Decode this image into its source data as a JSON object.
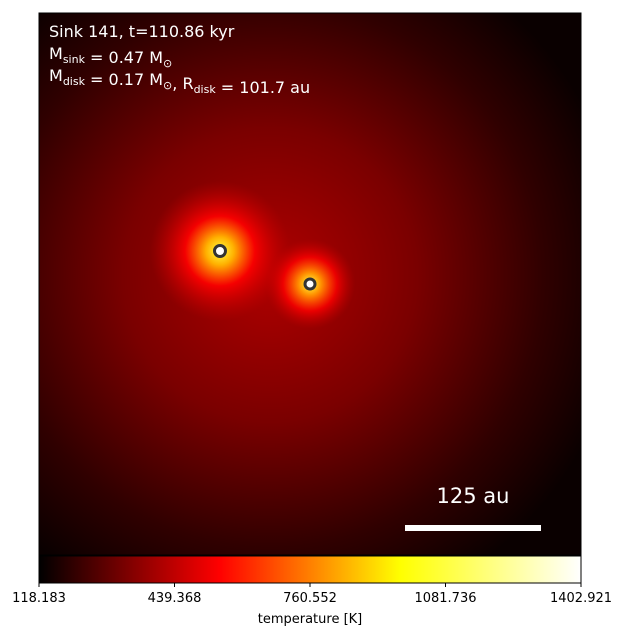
{
  "chart_data": {
    "type": "heatmap",
    "annotation_lines": [
      [
        {
          "text": "Sink 141, t=110.86 kyr"
        }
      ],
      [
        {
          "text": "M",
          "sub": "sink"
        },
        {
          "text": " = 0.47 M",
          "sub": "⊙"
        }
      ],
      [
        {
          "text": "M",
          "sub": "disk"
        },
        {
          "text": " = 0.17 M",
          "sub": "⊙"
        },
        {
          "text": ", R",
          "sub": "disk"
        },
        {
          "text": " = 101.7 au"
        }
      ]
    ],
    "scale_bar_label": "125 au",
    "colorbar": {
      "label": "temperature [K]",
      "clim": [
        118.183,
        1402.921
      ],
      "ticks": [
        118.183,
        439.368,
        760.552,
        1081.736,
        1402.921
      ],
      "colors": [
        "#000000",
        "#ff0000",
        "#ffff00",
        "#ffffff"
      ]
    }
  }
}
